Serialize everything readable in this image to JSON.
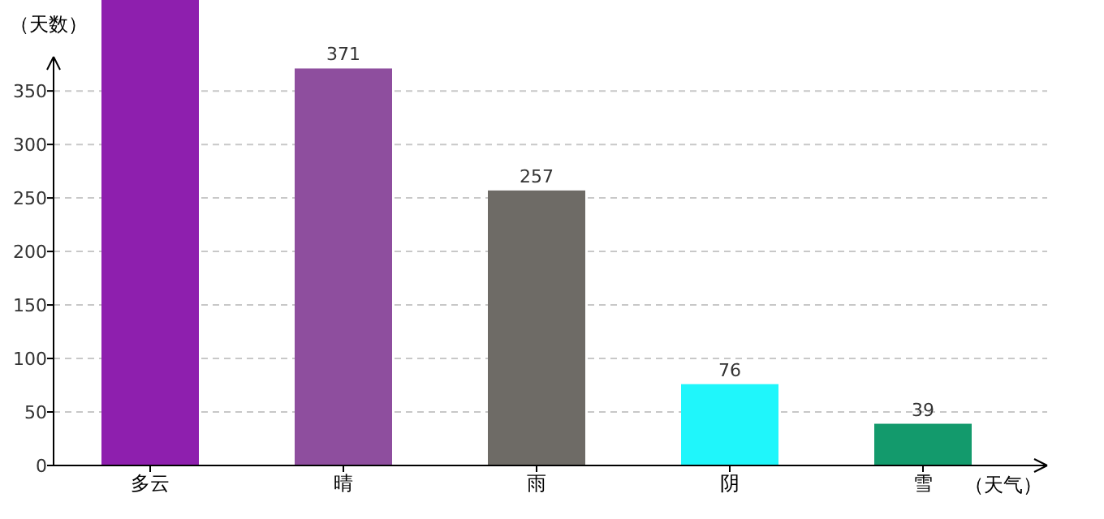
{
  "chart_data": {
    "type": "bar",
    "xlabel": "（天气）",
    "ylabel": "（天数）",
    "categories": [
      "多云",
      "晴",
      "雨",
      "阴",
      "雪"
    ],
    "values": [
      435,
      371,
      257,
      76,
      39
    ],
    "value_labels": [
      null,
      "371",
      "257",
      "76",
      "39"
    ],
    "colors": [
      "#8e1fae",
      "#8e4e9e",
      "#6e6b66",
      "#1ff6fb",
      "#139a6c"
    ],
    "ylim": [
      0,
      435
    ],
    "yticks": [
      0,
      50,
      100,
      150,
      200,
      250,
      300,
      350
    ],
    "grid": "y"
  }
}
